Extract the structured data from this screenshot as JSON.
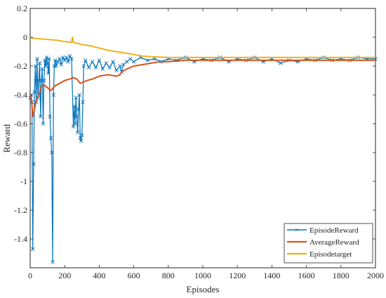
{
  "chart_data": {
    "type": "line",
    "xlabel": "Episodes",
    "ylabel": "Reward",
    "xlim": [
      0,
      2000
    ],
    "ylim": [
      -1.6,
      0.2
    ],
    "xticks": [
      0,
      200,
      400,
      600,
      800,
      1000,
      1200,
      1400,
      1600,
      1800,
      2000
    ],
    "yticks": [
      0.2,
      0,
      -0.2,
      -0.4,
      -0.6,
      -0.8,
      -1,
      -1.2,
      -1.4
    ],
    "ytick_labels": [
      "0.2",
      "0",
      "-0.2",
      "-0.4",
      "-0.6",
      "-0.8",
      "-1",
      "-1.2",
      "-1.4"
    ],
    "grid": false,
    "legend_position": "bottom-right",
    "series": [
      {
        "name": "EpisodeReward",
        "color": "#0072BD",
        "marker": "x",
        "points": [
          [
            0,
            -0.42
          ],
          [
            5,
            -0.4
          ],
          [
            10,
            -0.45
          ],
          [
            15,
            -1.47
          ],
          [
            20,
            -0.88
          ],
          [
            25,
            -0.38
          ],
          [
            30,
            -0.2
          ],
          [
            35,
            -0.45
          ],
          [
            40,
            -0.15
          ],
          [
            45,
            -0.42
          ],
          [
            50,
            -0.3
          ],
          [
            55,
            -0.18
          ],
          [
            60,
            -0.55
          ],
          [
            65,
            -0.3
          ],
          [
            70,
            -0.22
          ],
          [
            75,
            -0.6
          ],
          [
            80,
            -0.3
          ],
          [
            85,
            -0.16
          ],
          [
            90,
            -0.2
          ],
          [
            95,
            -0.14
          ],
          [
            100,
            -0.18
          ],
          [
            105,
            -0.25
          ],
          [
            110,
            -0.15
          ],
          [
            115,
            -0.55
          ],
          [
            120,
            -0.7
          ],
          [
            125,
            -0.8
          ],
          [
            130,
            -1.56
          ],
          [
            135,
            -0.4
          ],
          [
            140,
            -0.2
          ],
          [
            145,
            -0.16
          ],
          [
            150,
            -0.2
          ],
          [
            160,
            -0.17
          ],
          [
            170,
            -0.15
          ],
          [
            180,
            -0.19
          ],
          [
            190,
            -0.14
          ],
          [
            200,
            -0.16
          ],
          [
            210,
            -0.14
          ],
          [
            220,
            -0.17
          ],
          [
            230,
            -0.13
          ],
          [
            240,
            -0.15
          ],
          [
            250,
            -0.62
          ],
          [
            255,
            -0.48
          ],
          [
            260,
            -0.6
          ],
          [
            265,
            -0.42
          ],
          [
            270,
            -0.55
          ],
          [
            275,
            -0.66
          ],
          [
            280,
            -0.5
          ],
          [
            285,
            -0.4
          ],
          [
            290,
            -0.7
          ],
          [
            295,
            -0.72
          ],
          [
            300,
            -0.68
          ],
          [
            305,
            -0.45
          ],
          [
            310,
            -0.2
          ],
          [
            320,
            -0.16
          ],
          [
            340,
            -0.21
          ],
          [
            360,
            -0.17
          ],
          [
            380,
            -0.21
          ],
          [
            400,
            -0.16
          ],
          [
            420,
            -0.22
          ],
          [
            440,
            -0.18
          ],
          [
            460,
            -0.21
          ],
          [
            480,
            -0.17
          ],
          [
            500,
            -0.23
          ],
          [
            520,
            -0.2
          ],
          [
            530,
            -0.24
          ],
          [
            540,
            -0.19
          ],
          [
            560,
            -0.17
          ],
          [
            580,
            -0.15
          ],
          [
            600,
            -0.17
          ],
          [
            640,
            -0.14
          ],
          [
            680,
            -0.16
          ],
          [
            720,
            -0.15
          ],
          [
            760,
            -0.17
          ],
          [
            800,
            -0.15
          ],
          [
            850,
            -0.16
          ],
          [
            900,
            -0.14
          ],
          [
            950,
            -0.17
          ],
          [
            1000,
            -0.15
          ],
          [
            1050,
            -0.16
          ],
          [
            1100,
            -0.14
          ],
          [
            1150,
            -0.17
          ],
          [
            1200,
            -0.15
          ],
          [
            1250,
            -0.16
          ],
          [
            1300,
            -0.14
          ],
          [
            1350,
            -0.17
          ],
          [
            1400,
            -0.15
          ],
          [
            1450,
            -0.18
          ],
          [
            1500,
            -0.16
          ],
          [
            1550,
            -0.17
          ],
          [
            1600,
            -0.15
          ],
          [
            1650,
            -0.16
          ],
          [
            1700,
            -0.14
          ],
          [
            1750,
            -0.16
          ],
          [
            1800,
            -0.15
          ],
          [
            1850,
            -0.16
          ],
          [
            1900,
            -0.14
          ],
          [
            1950,
            -0.15
          ],
          [
            2000,
            -0.15
          ]
        ]
      },
      {
        "name": "AverageReward",
        "color": "#D95319",
        "marker": "none",
        "points": [
          [
            0,
            -0.42
          ],
          [
            5,
            -0.4
          ],
          [
            10,
            -0.47
          ],
          [
            15,
            -0.55
          ],
          [
            25,
            -0.5
          ],
          [
            35,
            -0.44
          ],
          [
            50,
            -0.4
          ],
          [
            65,
            -0.34
          ],
          [
            80,
            -0.33
          ],
          [
            100,
            -0.35
          ],
          [
            120,
            -0.37
          ],
          [
            140,
            -0.34
          ],
          [
            170,
            -0.32
          ],
          [
            200,
            -0.3
          ],
          [
            230,
            -0.29
          ],
          [
            250,
            -0.28
          ],
          [
            270,
            -0.29
          ],
          [
            290,
            -0.32
          ],
          [
            310,
            -0.31
          ],
          [
            330,
            -0.3
          ],
          [
            360,
            -0.29
          ],
          [
            400,
            -0.27
          ],
          [
            450,
            -0.26
          ],
          [
            500,
            -0.27
          ],
          [
            520,
            -0.26
          ],
          [
            530,
            -0.24
          ],
          [
            560,
            -0.22
          ],
          [
            600,
            -0.2
          ],
          [
            650,
            -0.19
          ],
          [
            700,
            -0.18
          ],
          [
            750,
            -0.17
          ],
          [
            800,
            -0.17
          ],
          [
            900,
            -0.16
          ],
          [
            1000,
            -0.16
          ],
          [
            1200,
            -0.16
          ],
          [
            1400,
            -0.16
          ],
          [
            1600,
            -0.16
          ],
          [
            1800,
            -0.16
          ],
          [
            2000,
            -0.16
          ]
        ]
      },
      {
        "name": "Episodetarget",
        "color": "#EDB120",
        "marker": "none",
        "points": [
          [
            0,
            -0.005
          ],
          [
            50,
            -0.01
          ],
          [
            100,
            -0.015
          ],
          [
            150,
            -0.02
          ],
          [
            200,
            -0.03
          ],
          [
            240,
            -0.035
          ],
          [
            245,
            0.0
          ],
          [
            250,
            -0.035
          ],
          [
            300,
            -0.05
          ],
          [
            350,
            -0.06
          ],
          [
            400,
            -0.075
          ],
          [
            450,
            -0.09
          ],
          [
            500,
            -0.1
          ],
          [
            550,
            -0.11
          ],
          [
            600,
            -0.12
          ],
          [
            650,
            -0.13
          ],
          [
            700,
            -0.135
          ],
          [
            800,
            -0.14
          ],
          [
            900,
            -0.14
          ],
          [
            1000,
            -0.14
          ],
          [
            1200,
            -0.14
          ],
          [
            1400,
            -0.14
          ],
          [
            1600,
            -0.14
          ],
          [
            1800,
            -0.14
          ],
          [
            2000,
            -0.14
          ]
        ]
      }
    ]
  }
}
